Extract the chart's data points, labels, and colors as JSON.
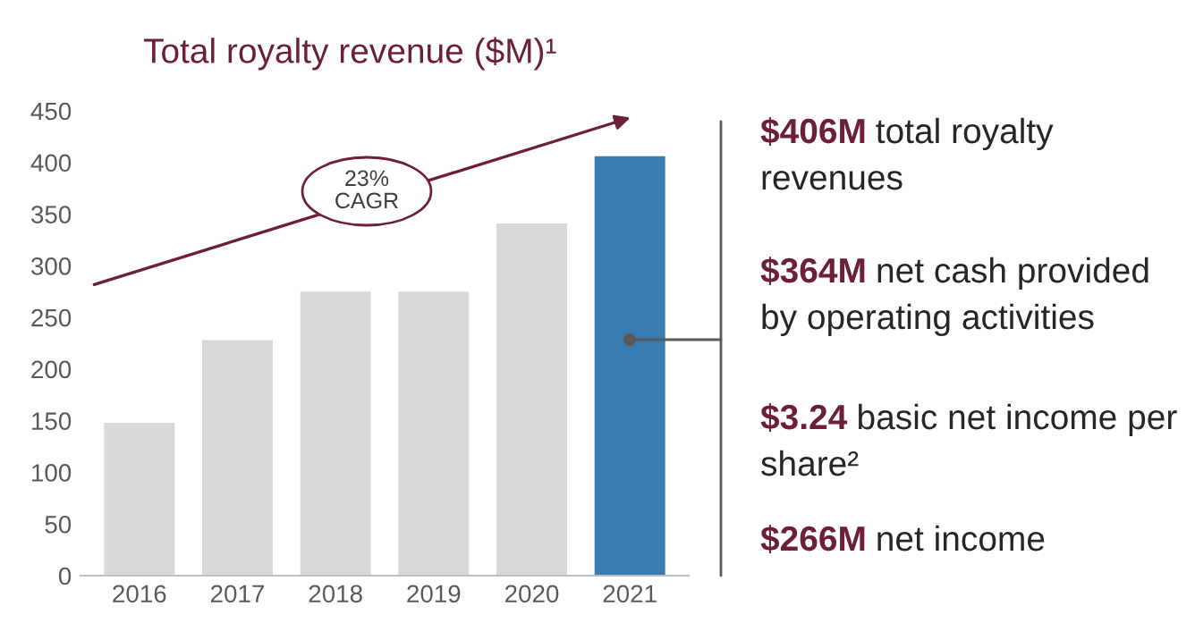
{
  "chart_data": {
    "type": "bar",
    "title": "Total royalty revenue ($M)¹",
    "categories": [
      "2016",
      "2017",
      "2018",
      "2019",
      "2020",
      "2021"
    ],
    "values": [
      148,
      228,
      275,
      275,
      341,
      406
    ],
    "colors": [
      "#d9d9d9",
      "#d9d9d9",
      "#d9d9d9",
      "#d9d9d9",
      "#d9d9d9",
      "#3a7bb0"
    ],
    "ylim": [
      0,
      450
    ],
    "yticks": [
      0,
      50,
      100,
      150,
      200,
      250,
      300,
      350,
      400,
      450
    ],
    "grid": false,
    "legend": false,
    "annotations": [
      "23%\nCAGR",
      "$406M total royalty\nrevenues",
      "$364M net cash provided\nby operating activities",
      "$3.24 basic net income per\nshare²",
      "$266M net income"
    ]
  }
}
